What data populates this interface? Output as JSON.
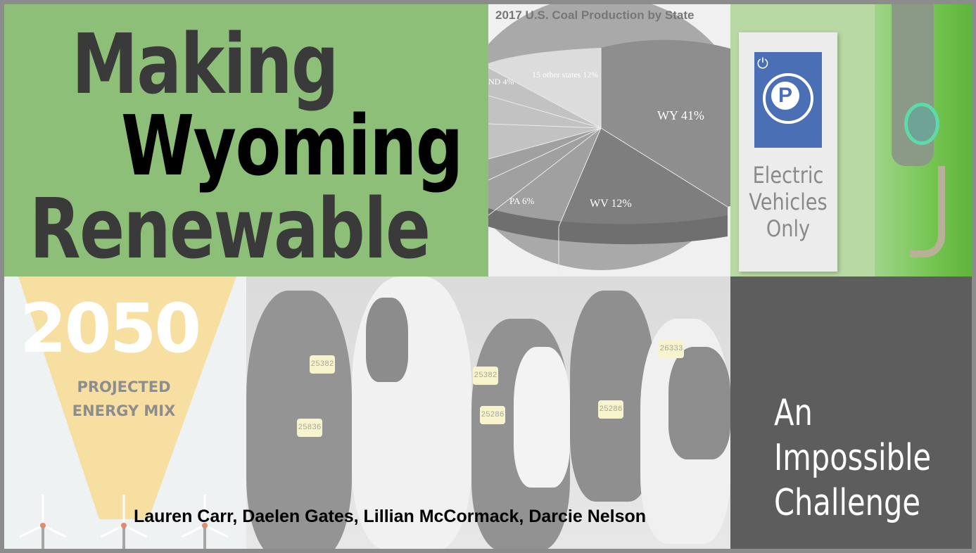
{
  "title": {
    "line1": "Making",
    "line2": "Wyoming",
    "line3": "Renewable"
  },
  "chart": {
    "title": "2017 U.S. Coal Production by State",
    "slices": [
      {
        "label": "WY 41%",
        "value": 41
      },
      {
        "label": "WV 12%",
        "value": 12
      },
      {
        "label": "PA 6%",
        "value": 6
      },
      {
        "label": "ND 4%",
        "value": 4
      },
      {
        "label": "15 other states 12%",
        "value": 12
      }
    ]
  },
  "ev_sign": {
    "lines": [
      "Electric",
      "Vehicles",
      "Only"
    ]
  },
  "energy_mix": {
    "year": "2050",
    "subtitle": "PROJECTED\nENERGY MIX"
  },
  "cows": {
    "tags": [
      "25382",
      "25382",
      "25286",
      "25836",
      "25286",
      "26333"
    ]
  },
  "authors": "Lauren Carr, Daelen Gates, Lillian McCormack, Darcie Nelson",
  "subtitle": "An\nImpossible\nChallenge",
  "colors": {
    "green": "#8dbf78",
    "dark_panel": "#5d5d5d",
    "beam": "#f6dfa0"
  }
}
